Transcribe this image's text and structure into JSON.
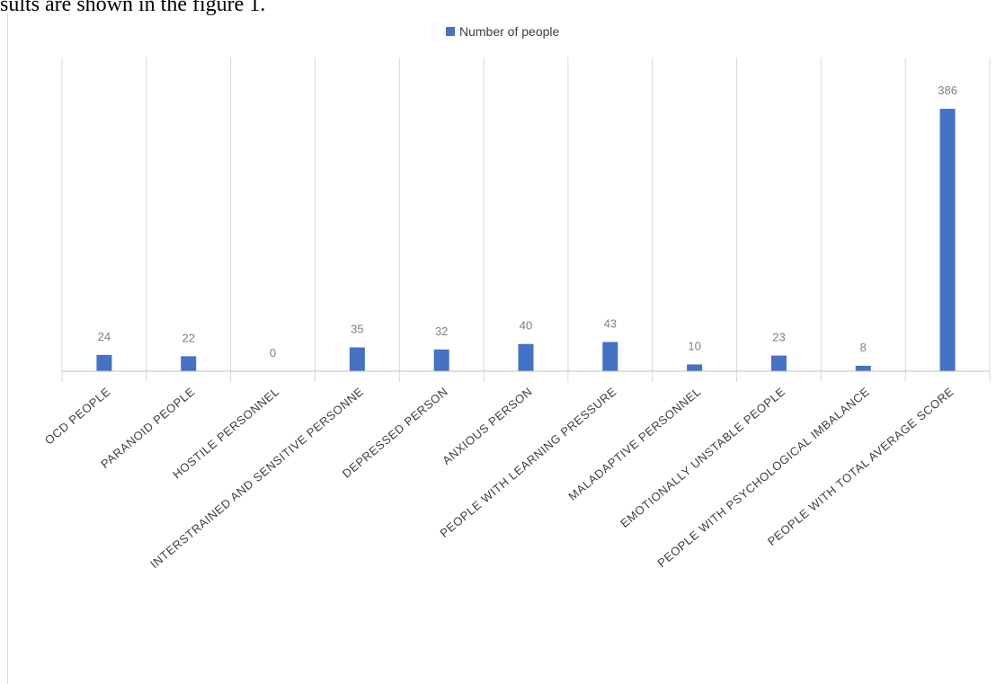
{
  "caption": "sults are shown in the figure 1.",
  "chart_data": {
    "type": "bar",
    "categories": [
      "OCD PEOPLE",
      "PARANOID PEOPLE",
      "HOSTILE PERSONNEL",
      "INTERSTRAINED AND SENSITIVE PERSONNE",
      "DEPRESSED PERSON",
      "ANXIOUS PERSON",
      "PEOPLE WITH LEARNING PRESSURE",
      "MALADAPTIVE PERSONNEL",
      "EMOTIONALLY UNSTABLE PEOPLE",
      "PEOPLE WITH PSYCHOLOGICAL IMBALANCE",
      "PEOPLE WITH TOTAL AVERAGE SCORE"
    ],
    "series": [
      {
        "name": "Number of people",
        "values": [
          24,
          22,
          0,
          35,
          32,
          40,
          43,
          10,
          23,
          8,
          386
        ]
      }
    ],
    "data_labels": [
      "24",
      "22",
      "0",
      "35",
      "32",
      "40",
      "43",
      "10",
      "23",
      "8",
      "386"
    ],
    "ylim": [
      0,
      386
    ],
    "legend": "top-center",
    "grid": "vertical",
    "colors": {
      "bar": "#4472C4",
      "grid": "#d9d9d9",
      "axis": "#bfbfbf",
      "label": "#7f7f7f"
    }
  }
}
